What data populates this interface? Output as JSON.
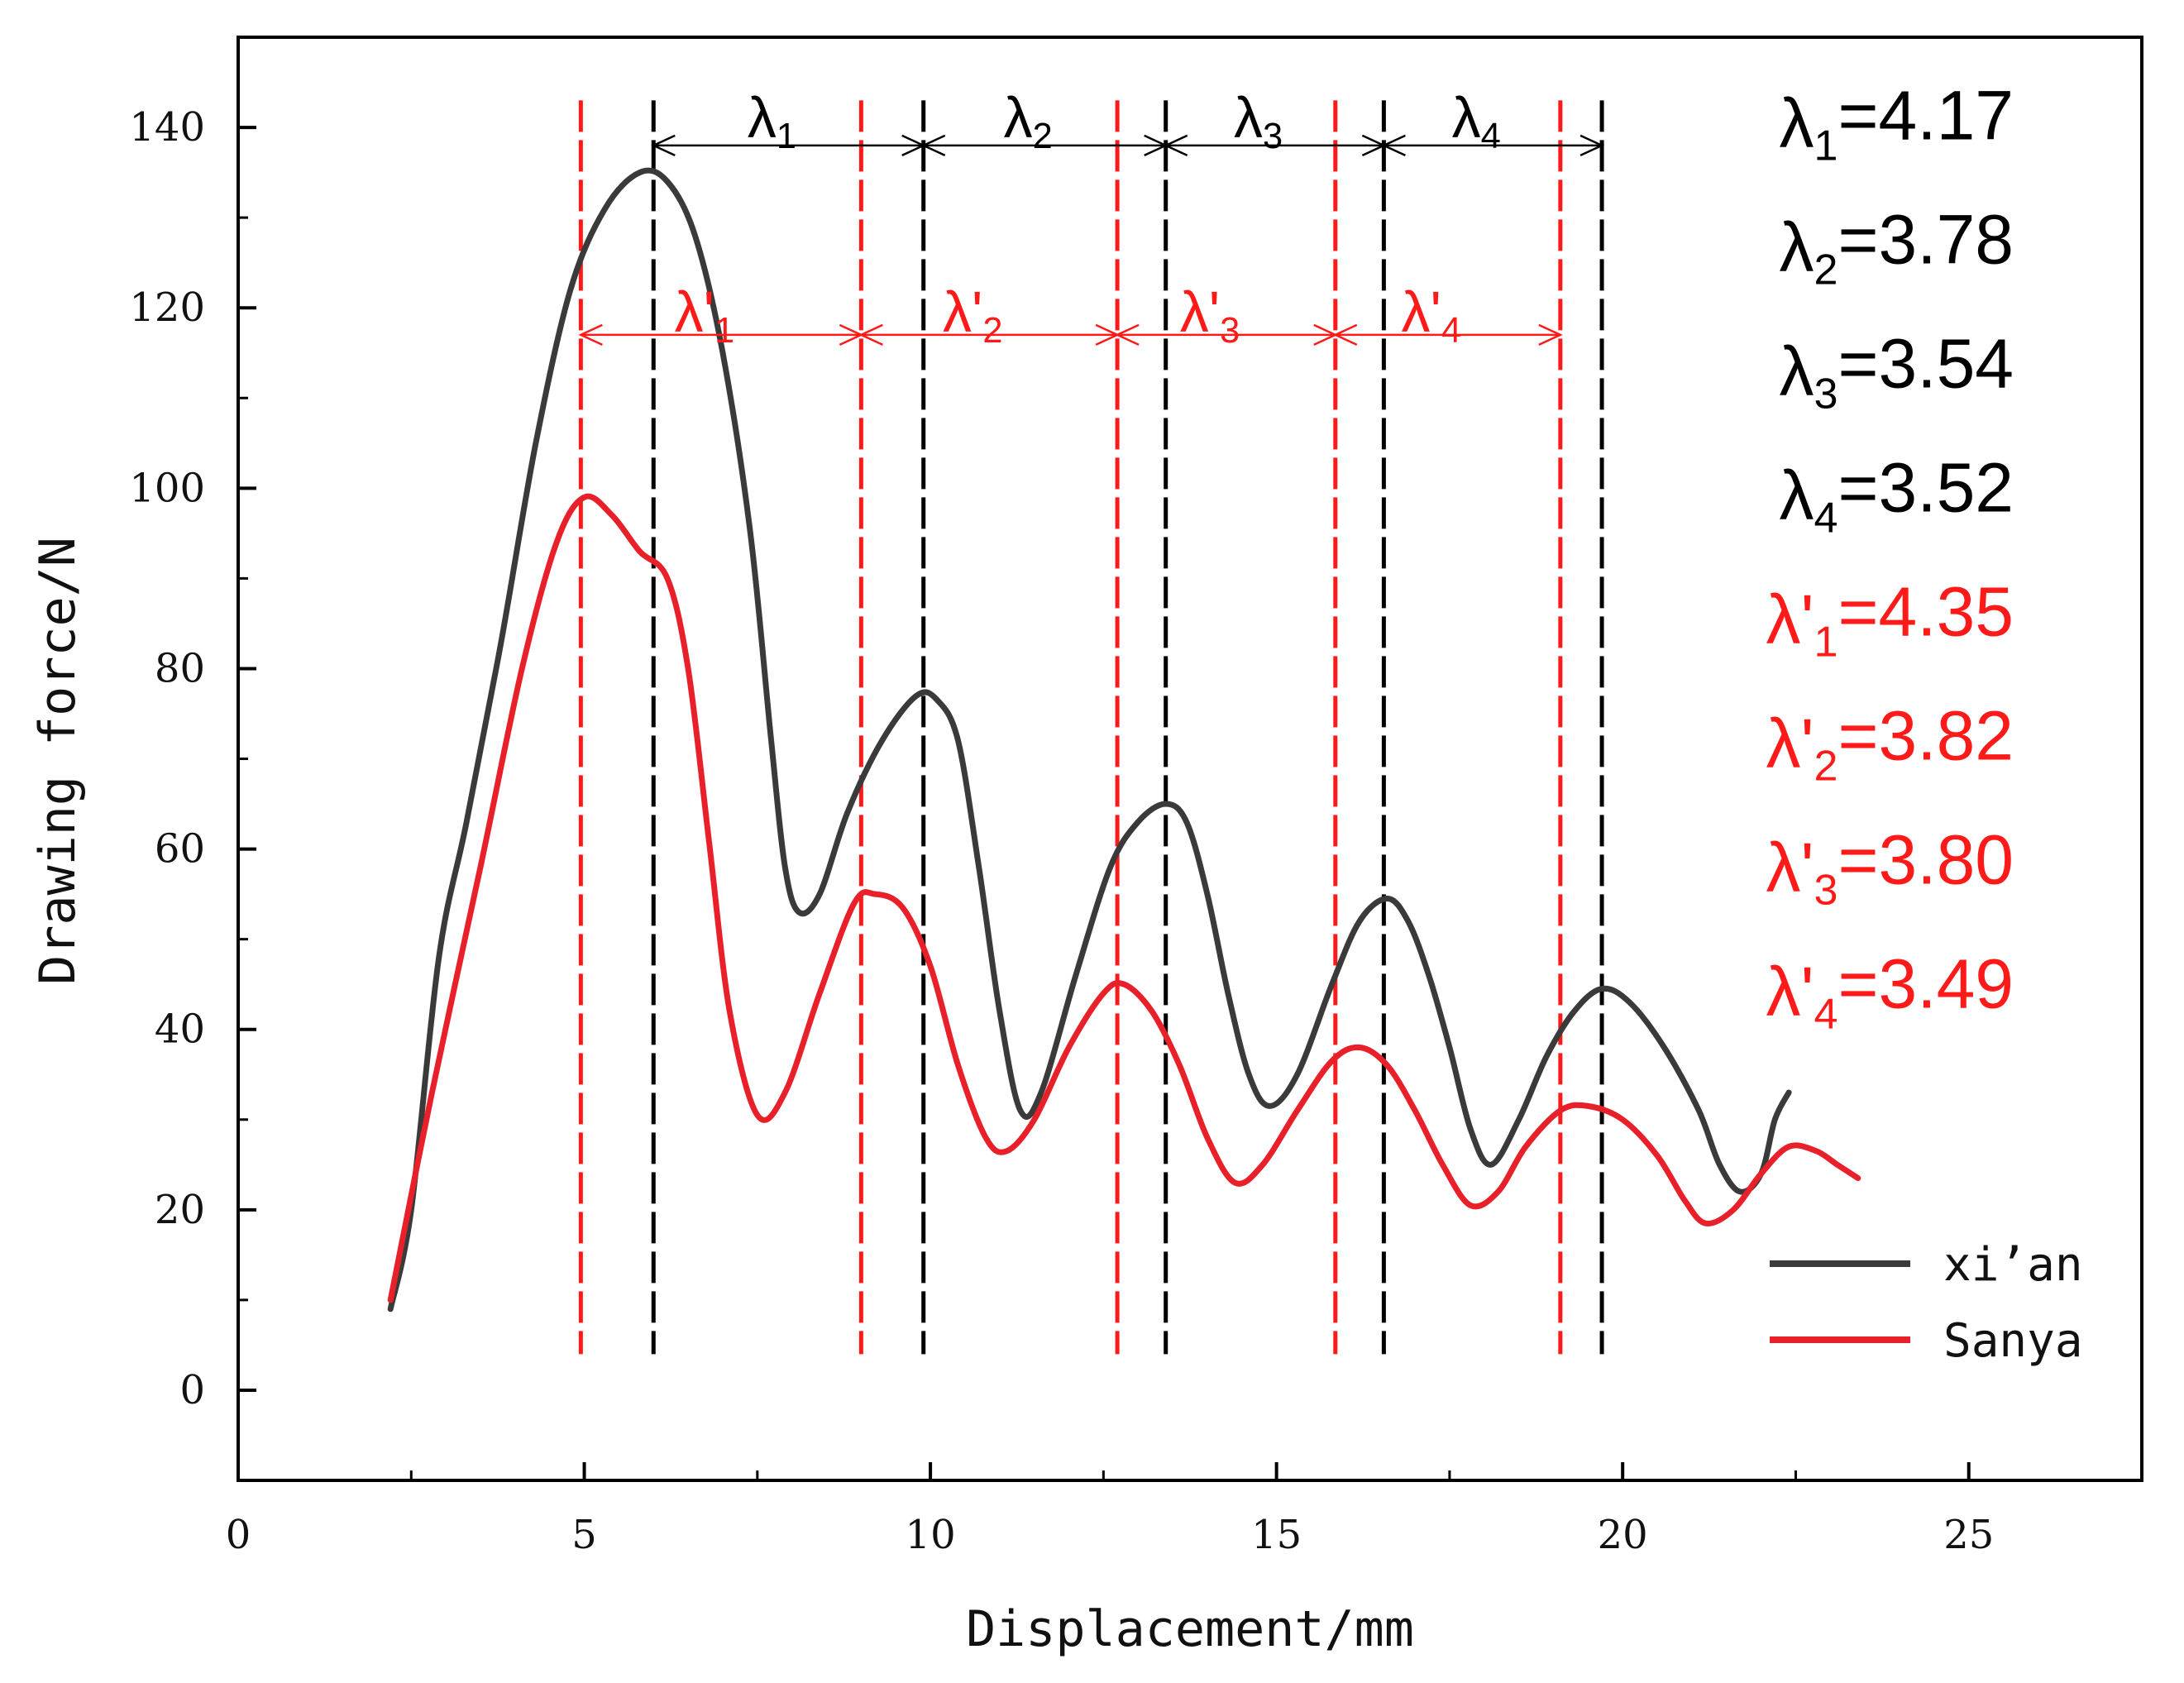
{
  "chart_data": {
    "type": "line",
    "xlabel": "Displacement/mm",
    "ylabel": "Drawing force/N",
    "xlim": [
      0,
      27.5
    ],
    "ylim": [
      -10,
      150
    ],
    "xticks": [
      0,
      5,
      10,
      15,
      20,
      25
    ],
    "yticks": [
      0,
      20,
      40,
      60,
      80,
      100,
      120,
      140
    ],
    "legend_position": "bottom-right",
    "series": [
      {
        "name": "xi’an",
        "color": "#3a3a3a",
        "points": [
          [
            2.2,
            9
          ],
          [
            2.5,
            20
          ],
          [
            2.9,
            48
          ],
          [
            3.3,
            63
          ],
          [
            3.8,
            83
          ],
          [
            4.3,
            105
          ],
          [
            4.8,
            122
          ],
          [
            5.3,
            131
          ],
          [
            5.8,
            135
          ],
          [
            6.2,
            134
          ],
          [
            6.6,
            128
          ],
          [
            7.0,
            115
          ],
          [
            7.4,
            95
          ],
          [
            7.7,
            72
          ],
          [
            7.9,
            58
          ],
          [
            8.1,
            53
          ],
          [
            8.4,
            55
          ],
          [
            8.8,
            64
          ],
          [
            9.3,
            72
          ],
          [
            9.8,
            77
          ],
          [
            10.1,
            76.5
          ],
          [
            10.4,
            72
          ],
          [
            10.7,
            58
          ],
          [
            11.0,
            42
          ],
          [
            11.3,
            31
          ],
          [
            11.6,
            33
          ],
          [
            12.1,
            46
          ],
          [
            12.6,
            58
          ],
          [
            13.0,
            63
          ],
          [
            13.4,
            65
          ],
          [
            13.7,
            63
          ],
          [
            14.0,
            55
          ],
          [
            14.3,
            44
          ],
          [
            14.6,
            35
          ],
          [
            14.9,
            31.5
          ],
          [
            15.3,
            35
          ],
          [
            15.8,
            45
          ],
          [
            16.2,
            52
          ],
          [
            16.6,
            54.5
          ],
          [
            16.9,
            52
          ],
          [
            17.2,
            46
          ],
          [
            17.5,
            38
          ],
          [
            17.8,
            29
          ],
          [
            18.1,
            25
          ],
          [
            18.5,
            30
          ],
          [
            18.9,
            37
          ],
          [
            19.3,
            42
          ],
          [
            19.7,
            44.5
          ],
          [
            20.1,
            43
          ],
          [
            20.6,
            38
          ],
          [
            21.1,
            31
          ],
          [
            21.4,
            25
          ],
          [
            21.7,
            22
          ],
          [
            22.0,
            24
          ],
          [
            22.2,
            30
          ],
          [
            22.4,
            33
          ]
        ]
      },
      {
        "name": "Sanya",
        "color": "#e8202a",
        "points": [
          [
            2.2,
            10
          ],
          [
            2.8,
            33
          ],
          [
            3.5,
            58
          ],
          [
            4.1,
            80
          ],
          [
            4.6,
            94
          ],
          [
            5.0,
            99
          ],
          [
            5.4,
            97
          ],
          [
            5.8,
            93
          ],
          [
            6.2,
            90
          ],
          [
            6.5,
            80
          ],
          [
            6.8,
            61
          ],
          [
            7.1,
            42
          ],
          [
            7.5,
            30.5
          ],
          [
            7.9,
            33
          ],
          [
            8.4,
            44
          ],
          [
            8.9,
            54
          ],
          [
            9.2,
            55
          ],
          [
            9.6,
            53.5
          ],
          [
            10.0,
            47
          ],
          [
            10.4,
            36
          ],
          [
            10.8,
            28
          ],
          [
            11.1,
            26.5
          ],
          [
            11.5,
            30
          ],
          [
            12.0,
            38
          ],
          [
            12.5,
            44
          ],
          [
            12.8,
            45
          ],
          [
            13.2,
            42
          ],
          [
            13.6,
            36
          ],
          [
            14.0,
            28
          ],
          [
            14.4,
            23
          ],
          [
            14.8,
            25
          ],
          [
            15.3,
            31
          ],
          [
            15.8,
            36.5
          ],
          [
            16.2,
            38
          ],
          [
            16.6,
            36
          ],
          [
            17.0,
            31
          ],
          [
            17.4,
            25
          ],
          [
            17.8,
            20.5
          ],
          [
            18.2,
            22
          ],
          [
            18.6,
            27
          ],
          [
            19.1,
            31
          ],
          [
            19.5,
            31.5
          ],
          [
            20.0,
            30
          ],
          [
            20.5,
            26
          ],
          [
            20.9,
            21
          ],
          [
            21.2,
            18.5
          ],
          [
            21.6,
            20
          ],
          [
            22.0,
            24
          ],
          [
            22.4,
            27
          ],
          [
            22.8,
            26.5
          ],
          [
            23.1,
            25
          ],
          [
            23.4,
            23.5
          ]
        ]
      }
    ],
    "black_verticals": [
      6.0,
      9.9,
      13.4,
      16.55,
      19.7
    ],
    "red_verticals": [
      4.95,
      9.0,
      12.7,
      15.85,
      19.1
    ],
    "vertical_line_range": [
      4,
      143
    ],
    "black_arrow_y": 138,
    "red_arrow_y": 117,
    "black_spans": [
      {
        "base": "λ",
        "prime": "",
        "sub": "1"
      },
      {
        "base": "λ",
        "prime": "",
        "sub": "2"
      },
      {
        "base": "λ",
        "prime": "",
        "sub": "3"
      },
      {
        "base": "λ",
        "prime": "",
        "sub": "4"
      }
    ],
    "red_spans": [
      {
        "base": "λ",
        "prime": "'",
        "sub": "1"
      },
      {
        "base": "λ",
        "prime": "'",
        "sub": "2"
      },
      {
        "base": "λ",
        "prime": "'",
        "sub": "3"
      },
      {
        "base": "λ",
        "prime": "'",
        "sub": "4"
      }
    ],
    "annotations": [
      {
        "base": "λ",
        "prime": "",
        "sub": "1",
        "value": "=4.17",
        "color": "#000000"
      },
      {
        "base": "λ",
        "prime": "",
        "sub": "2",
        "value": "=3.78",
        "color": "#000000"
      },
      {
        "base": "λ",
        "prime": "",
        "sub": "3",
        "value": "=3.54",
        "color": "#000000"
      },
      {
        "base": "λ",
        "prime": "",
        "sub": "4",
        "value": "=3.52",
        "color": "#000000"
      },
      {
        "base": "λ",
        "prime": "'",
        "sub": "1",
        "value": "=4.35",
        "color": "#ff1a1a"
      },
      {
        "base": "λ",
        "prime": "'",
        "sub": "2",
        "value": "=3.82",
        "color": "#ff1a1a"
      },
      {
        "base": "λ",
        "prime": "'",
        "sub": "3",
        "value": "=3.80",
        "color": "#ff1a1a"
      },
      {
        "base": "λ",
        "prime": "'",
        "sub": "4",
        "value": "=3.49",
        "color": "#ff1a1a"
      }
    ]
  }
}
